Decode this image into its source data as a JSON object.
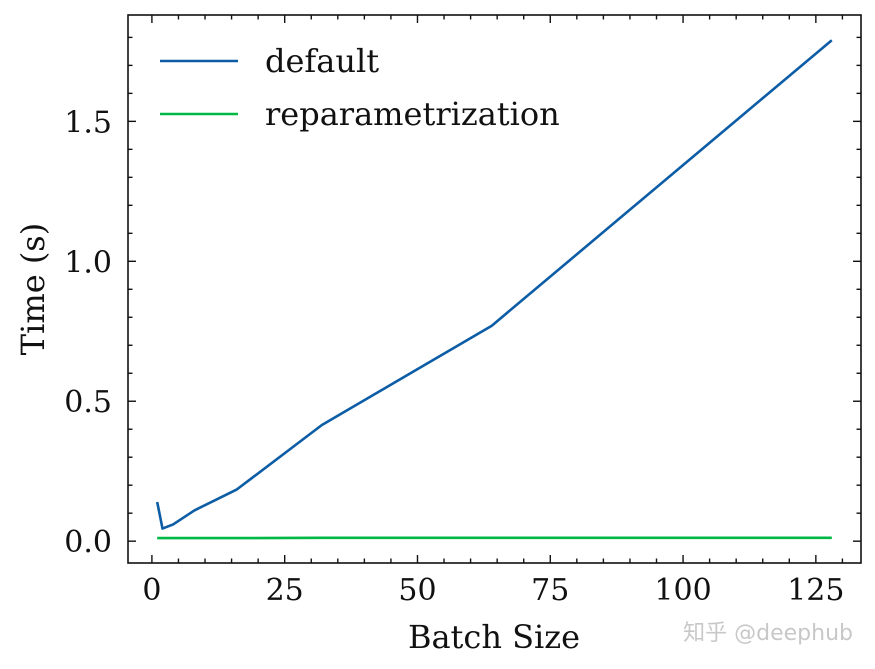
{
  "chart_data": {
    "type": "line",
    "title": "",
    "xlabel": "Batch Size",
    "ylabel": "Time (s)",
    "xlim": [
      -4.5,
      133.5
    ],
    "ylim": [
      -0.078,
      1.88
    ],
    "xticks": [
      0,
      25,
      50,
      75,
      100,
      125
    ],
    "xtick_labels": [
      "0",
      "25",
      "50",
      "75",
      "100",
      "125"
    ],
    "yticks": [
      0.0,
      0.5,
      1.0,
      1.5
    ],
    "ytick_labels": [
      "0.0",
      "0.5",
      "1.0",
      "1.5"
    ],
    "grid": false,
    "legend": "top-left",
    "series": [
      {
        "name": "default",
        "color": "#0C5DA5",
        "x": [
          1,
          2,
          4,
          8,
          16,
          32,
          64,
          128
        ],
        "y": [
          0.14,
          0.045,
          0.06,
          0.11,
          0.185,
          0.415,
          0.77,
          1.79
        ]
      },
      {
        "name": "reparametrization",
        "color": "#00B945",
        "x": [
          1,
          2,
          4,
          8,
          16,
          32,
          64,
          128
        ],
        "y": [
          0.011,
          0.011,
          0.011,
          0.011,
          0.011,
          0.012,
          0.012,
          0.012
        ]
      }
    ]
  },
  "watermark": "知乎 @deephub"
}
